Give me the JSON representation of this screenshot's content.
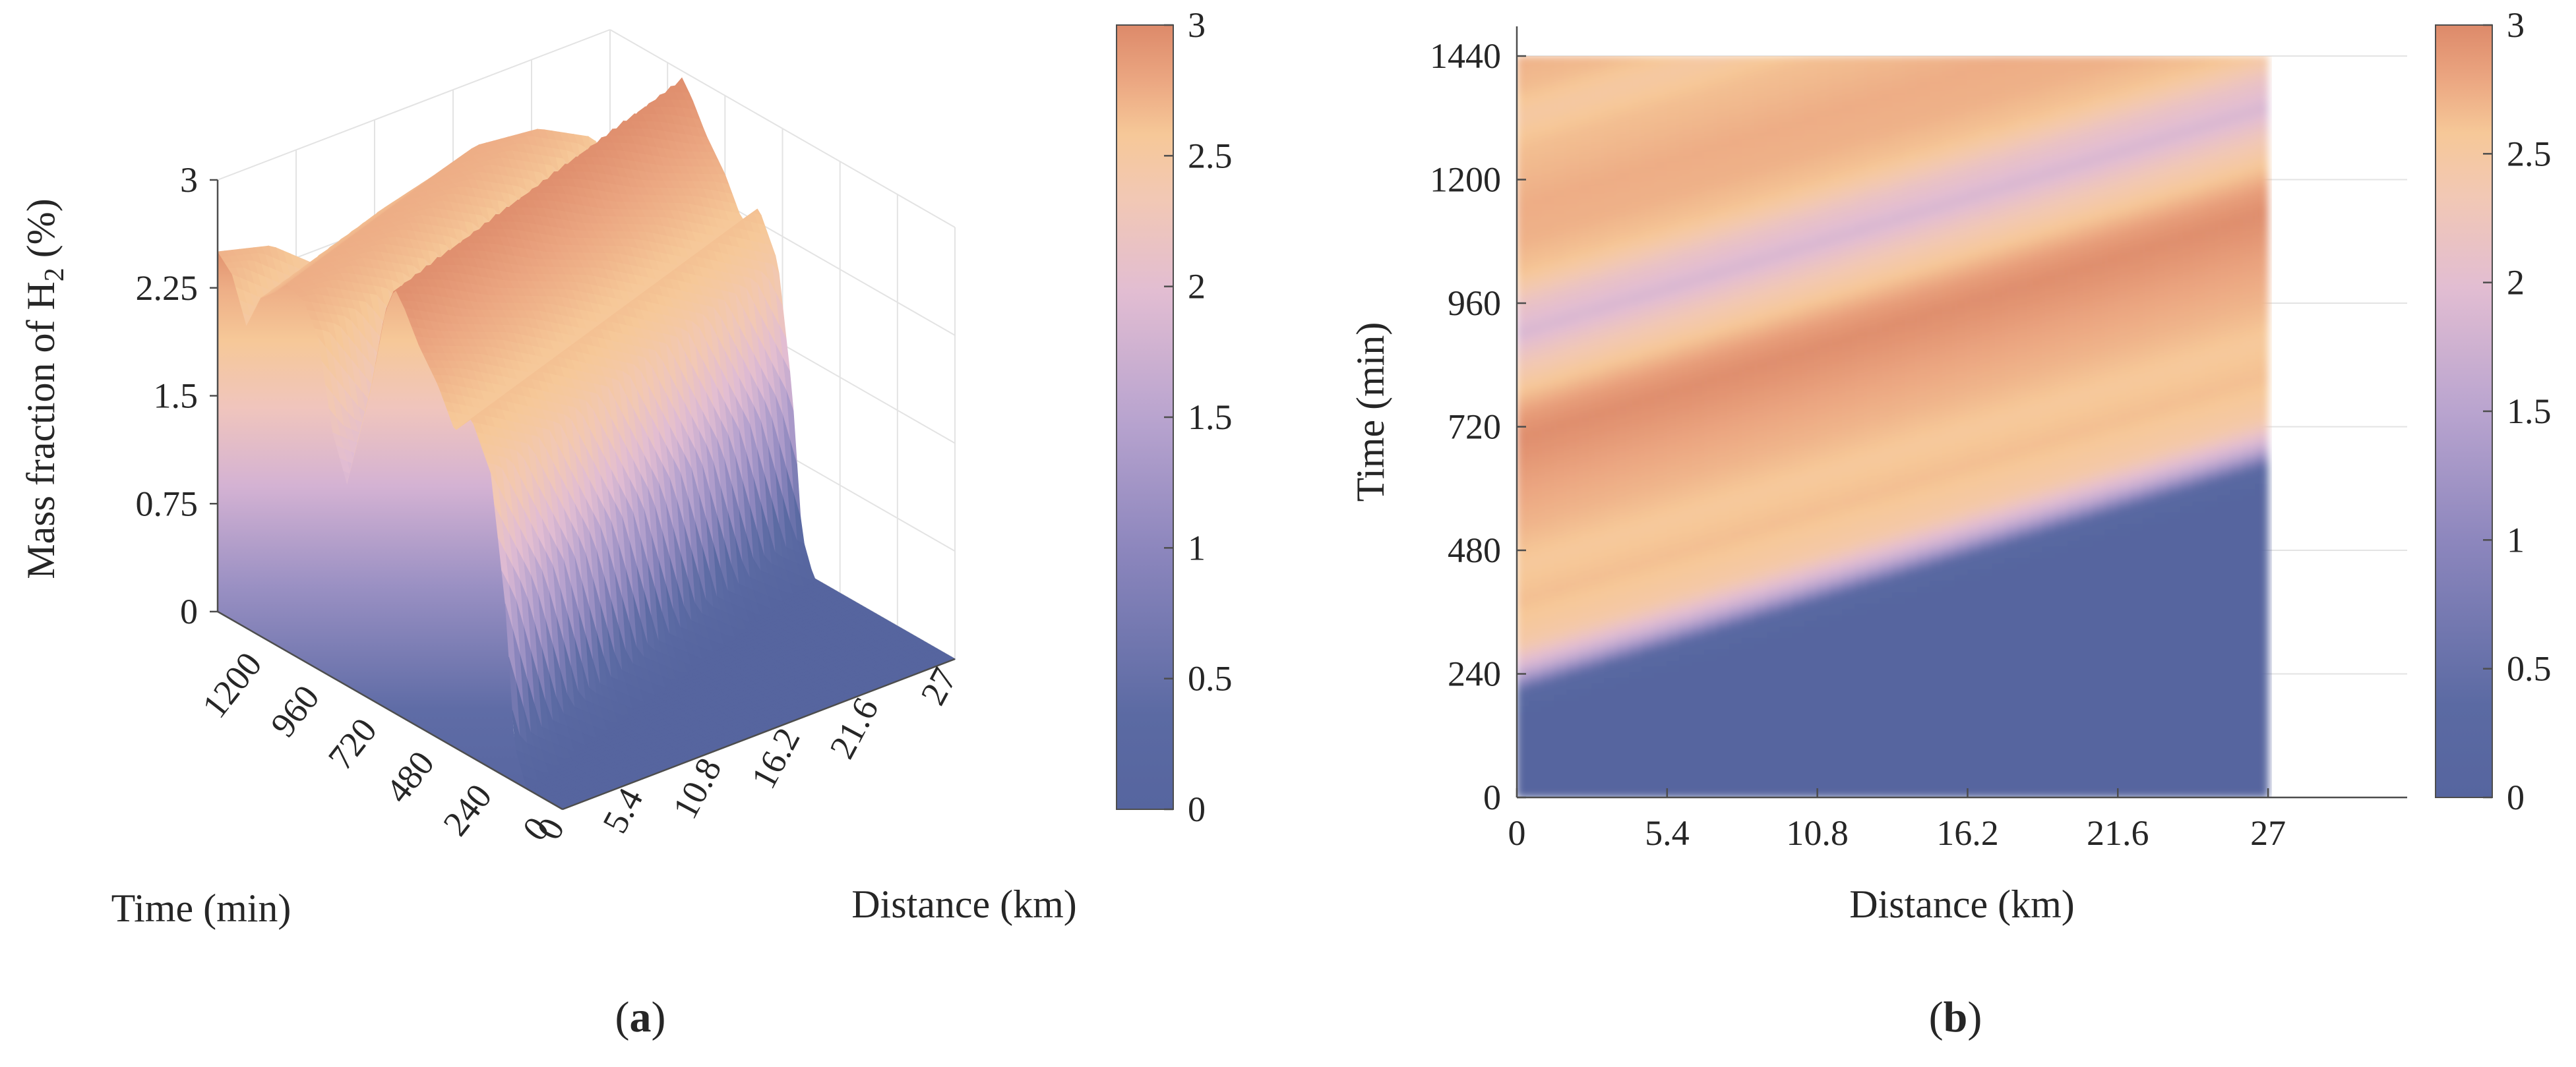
{
  "chart_data": [
    {
      "panel": "(a)",
      "type": "surface-3d",
      "zlabel": "Mass fraction of H",
      "zlabel_sub": "2",
      "zlabel_unit": " (%)",
      "xlabel": "Distance (km)",
      "ylabel": "Time (min)",
      "xticks": [
        "0",
        "5.4",
        "10.8",
        "16.2",
        "21.6",
        "27"
      ],
      "yticks": [
        "0",
        "240",
        "480",
        "720",
        "960",
        "1200"
      ],
      "zticks": [
        "0",
        "0.75",
        "1.5",
        "2.25",
        "3"
      ],
      "xlim": [
        0,
        27
      ],
      "ylim": [
        0,
        1440
      ],
      "zlim": [
        0,
        3
      ],
      "colorbar": {
        "ticks": [
          "0",
          "0.5",
          "1",
          "1.5",
          "2",
          "2.5",
          "3"
        ],
        "range": [
          0,
          3
        ]
      },
      "surface_profile_at_x0": {
        "time_min": [
          0,
          150,
          200,
          240,
          300,
          380,
          450,
          520,
          600,
          660,
          700,
          740,
          800,
          860,
          900,
          960,
          1020,
          1080,
          1150,
          1200,
          1260,
          1320,
          1380,
          1440
        ],
        "mass_fraction": [
          0,
          0,
          0.25,
          1.2,
          2.05,
          2.35,
          2.2,
          2.45,
          2.65,
          2.85,
          2.95,
          2.75,
          2.15,
          1.7,
          1.4,
          1.7,
          2.3,
          2.5,
          2.55,
          2.45,
          2.35,
          2.1,
          2.4,
          2.5
        ]
      },
      "front_speed_min_per_km": 16.3
    },
    {
      "panel": "(b)",
      "type": "heatmap",
      "xlabel": "Distance (km)",
      "ylabel": "Time (min)",
      "xticks": [
        "0",
        "5.4",
        "10.8",
        "16.2",
        "21.6",
        "27"
      ],
      "yticks": [
        "0",
        "240",
        "480",
        "720",
        "960",
        "1200",
        "1440"
      ],
      "xlim": [
        0,
        32
      ],
      "ylim": [
        0,
        1440
      ],
      "data_x_range": [
        0,
        27
      ],
      "colorbar": {
        "ticks": [
          "0",
          "0.5",
          "1",
          "1.5",
          "2",
          "2.5",
          "3"
        ],
        "range": [
          0,
          3
        ]
      },
      "front_arrival_min": {
        "x_km": [
          0,
          27
        ],
        "time_min": [
          200,
          640
        ]
      }
    }
  ],
  "colormap": [
    "#56659f",
    "#5b6aa3",
    "#8c86bd",
    "#b9a4cf",
    "#e2bdd2",
    "#f2c8b4",
    "#f6c898",
    "#eba681",
    "#dd8a6a"
  ],
  "gridColor": "#e3e3e3",
  "axisColor": "#4d4d4d",
  "panel_labels": [
    "a",
    "b"
  ]
}
